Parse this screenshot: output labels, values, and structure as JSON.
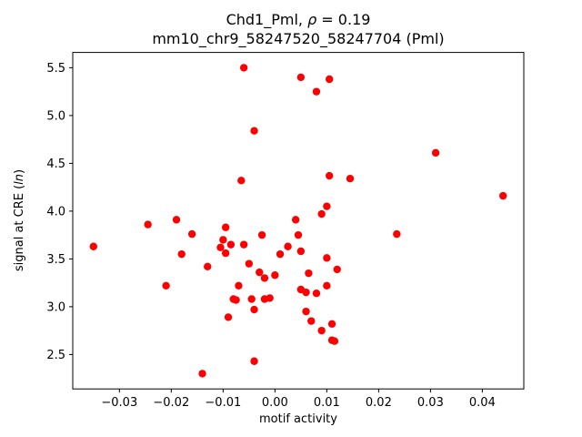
{
  "figure": {
    "background": "#ffffff"
  },
  "chart_data": {
    "type": "scatter",
    "title": "Chd1_Pml, ρ = 0.19\nmm10_chr9_58247520_58247704 (Pml)",
    "title_line1_parts": {
      "prefix": "Chd1_Pml, ",
      "italic": "ρ",
      "suffix": " = 0.19"
    },
    "title_line2": "mm10_chr9_58247520_58247704 (Pml)",
    "xlabel": "motif activity",
    "ylabel_parts": {
      "prefix": "signal at CRE (",
      "italic": "ln",
      "suffix": ")"
    },
    "marker_color": "#ff0000",
    "marker_radius": 4.2,
    "xlim": [
      -0.039,
      0.048
    ],
    "ylim": [
      2.14,
      5.66
    ],
    "xticks": [
      -0.03,
      -0.02,
      -0.01,
      0.0,
      0.01,
      0.02,
      0.03,
      0.04
    ],
    "xtick_labels": [
      "−0.03",
      "−0.02",
      "−0.01",
      "0.00",
      "0.01",
      "0.02",
      "0.03",
      "0.04"
    ],
    "yticks": [
      2.5,
      3.0,
      3.5,
      4.0,
      4.5,
      5.0,
      5.5
    ],
    "ytick_labels": [
      "2.5",
      "3.0",
      "3.5",
      "4.0",
      "4.5",
      "5.0",
      "5.5"
    ],
    "grid": false,
    "legend": null,
    "points": [
      [
        -0.035,
        3.63
      ],
      [
        -0.0245,
        3.86
      ],
      [
        -0.021,
        3.22
      ],
      [
        -0.019,
        3.91
      ],
      [
        -0.018,
        3.55
      ],
      [
        -0.016,
        3.76
      ],
      [
        -0.014,
        2.3
      ],
      [
        -0.013,
        3.42
      ],
      [
        -0.0105,
        3.62
      ],
      [
        -0.01,
        3.7
      ],
      [
        -0.0095,
        3.83
      ],
      [
        -0.0095,
        3.56
      ],
      [
        -0.009,
        2.89
      ],
      [
        -0.0085,
        3.65
      ],
      [
        -0.008,
        3.08
      ],
      [
        -0.0075,
        3.07
      ],
      [
        -0.007,
        3.22
      ],
      [
        -0.0065,
        4.32
      ],
      [
        -0.006,
        5.5
      ],
      [
        -0.006,
        3.65
      ],
      [
        -0.005,
        3.45
      ],
      [
        -0.0045,
        3.08
      ],
      [
        -0.004,
        4.84
      ],
      [
        -0.004,
        2.97
      ],
      [
        -0.004,
        2.43
      ],
      [
        -0.003,
        3.36
      ],
      [
        -0.0025,
        3.75
      ],
      [
        -0.002,
        3.3
      ],
      [
        -0.002,
        3.08
      ],
      [
        -0.001,
        3.09
      ],
      [
        0.0,
        3.33
      ],
      [
        0.001,
        3.55
      ],
      [
        0.0025,
        3.63
      ],
      [
        0.004,
        3.91
      ],
      [
        0.0045,
        3.75
      ],
      [
        0.005,
        5.4
      ],
      [
        0.005,
        3.58
      ],
      [
        0.005,
        3.18
      ],
      [
        0.006,
        3.15
      ],
      [
        0.006,
        2.95
      ],
      [
        0.0065,
        3.35
      ],
      [
        0.007,
        2.85
      ],
      [
        0.008,
        5.25
      ],
      [
        0.008,
        3.14
      ],
      [
        0.009,
        3.97
      ],
      [
        0.009,
        2.75
      ],
      [
        0.0105,
        5.38
      ],
      [
        0.0105,
        4.37
      ],
      [
        0.01,
        4.05
      ],
      [
        0.01,
        3.51
      ],
      [
        0.01,
        3.22
      ],
      [
        0.011,
        2.82
      ],
      [
        0.011,
        2.65
      ],
      [
        0.0115,
        2.64
      ],
      [
        0.012,
        3.39
      ],
      [
        0.0145,
        4.34
      ],
      [
        0.0235,
        3.76
      ],
      [
        0.031,
        4.61
      ],
      [
        0.044,
        4.16
      ]
    ]
  }
}
